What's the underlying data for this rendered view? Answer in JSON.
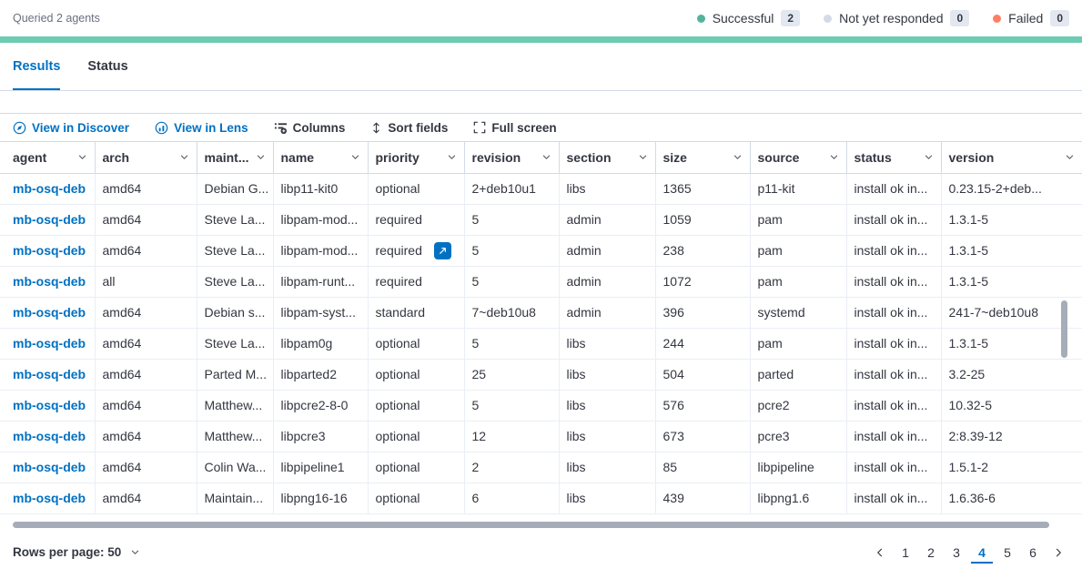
{
  "colors": {
    "accent": "#0071c2",
    "progress": "#6dccb1",
    "success": "#54b399",
    "pending": "#d3dae6",
    "danger": "#ff7e62"
  },
  "query_status": {
    "queried_text": "Queried 2 agents",
    "legend": [
      {
        "label": "Successful",
        "count": "2",
        "color_key": "success"
      },
      {
        "label": "Not yet responded",
        "count": "0",
        "color_key": "pending"
      },
      {
        "label": "Failed",
        "count": "0",
        "color_key": "danger"
      }
    ]
  },
  "tabs": [
    {
      "label": "Results",
      "active": true
    },
    {
      "label": "Status",
      "active": false
    }
  ],
  "toolbar": {
    "view_in_discover": "View in Discover",
    "view_in_lens": "View in Lens",
    "columns": "Columns",
    "sort_fields": "Sort fields",
    "full_screen": "Full screen"
  },
  "table": {
    "columns": [
      "agent",
      "arch",
      "maint...",
      "name",
      "priority",
      "revision",
      "section",
      "size",
      "source",
      "status",
      "version"
    ],
    "rows": [
      [
        "mb-osq-deb",
        "amd64",
        "Debian G...",
        "libp11-kit0",
        "optional",
        "2+deb10u1",
        "libs",
        "1365",
        "p11-kit",
        "install ok in...",
        "0.23.15-2+deb..."
      ],
      [
        "mb-osq-deb",
        "amd64",
        "Steve La...",
        "libpam-mod...",
        "required",
        "5",
        "admin",
        "1059",
        "pam",
        "install ok in...",
        "1.3.1-5"
      ],
      [
        "mb-osq-deb",
        "amd64",
        "Steve La...",
        "libpam-mod...",
        "required",
        "5",
        "admin",
        "238",
        "pam",
        "install ok in...",
        "1.3.1-5"
      ],
      [
        "mb-osq-deb",
        "all",
        "Steve La...",
        "libpam-runt...",
        "required",
        "5",
        "admin",
        "1072",
        "pam",
        "install ok in...",
        "1.3.1-5"
      ],
      [
        "mb-osq-deb",
        "amd64",
        "Debian s...",
        "libpam-syst...",
        "standard",
        "7~deb10u8",
        "admin",
        "396",
        "systemd",
        "install ok in...",
        "241-7~deb10u8"
      ],
      [
        "mb-osq-deb",
        "amd64",
        "Steve La...",
        "libpam0g",
        "optional",
        "5",
        "libs",
        "244",
        "pam",
        "install ok in...",
        "1.3.1-5"
      ],
      [
        "mb-osq-deb",
        "amd64",
        "Parted M...",
        "libparted2",
        "optional",
        "25",
        "libs",
        "504",
        "parted",
        "install ok in...",
        "3.2-25"
      ],
      [
        "mb-osq-deb",
        "amd64",
        "Matthew...",
        "libpcre2-8-0",
        "optional",
        "5",
        "libs",
        "576",
        "pcre2",
        "install ok in...",
        "10.32-5"
      ],
      [
        "mb-osq-deb",
        "amd64",
        "Matthew...",
        "libpcre3",
        "optional",
        "12",
        "libs",
        "673",
        "pcre3",
        "install ok in...",
        "2:8.39-12"
      ],
      [
        "mb-osq-deb",
        "amd64",
        "Colin Wa...",
        "libpipeline1",
        "optional",
        "2",
        "libs",
        "85",
        "libpipeline",
        "install ok in...",
        "1.5.1-2"
      ],
      [
        "mb-osq-deb",
        "amd64",
        "Maintain...",
        "libpng16-16",
        "optional",
        "6",
        "libs",
        "439",
        "libpng1.6",
        "install ok in...",
        "1.6.36-6"
      ]
    ],
    "link_column": 0,
    "expand_button": {
      "row": 2,
      "col": 4
    }
  },
  "footer": {
    "rows_per_page": "Rows per page: 50",
    "pages": [
      "1",
      "2",
      "3",
      "4",
      "5",
      "6"
    ],
    "active_page": "4"
  }
}
